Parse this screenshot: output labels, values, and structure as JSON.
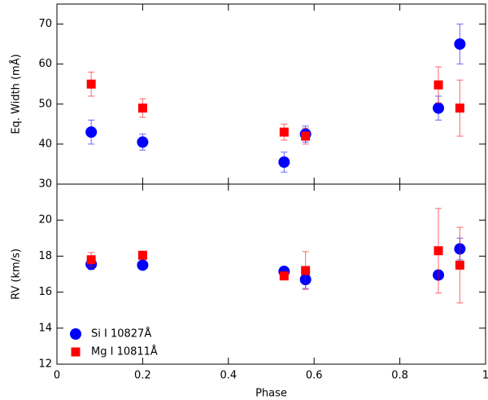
{
  "chart_data": [
    {
      "type": "scatter",
      "y_label": "Eq. Width (mÅ)",
      "xlim": [
        0,
        1
      ],
      "xticks": [
        0,
        0.2,
        0.4,
        0.6,
        0.8,
        1
      ],
      "ylim": [
        30,
        75
      ],
      "yticks": [
        30,
        40,
        50,
        60,
        70
      ],
      "series": [
        {
          "name": "Si I 10827Å",
          "color": "#0000ff",
          "marker": "circle",
          "x": [
            0.08,
            0.2,
            0.53,
            0.58,
            0.89,
            0.94
          ],
          "values": [
            43,
            40.5,
            35.5,
            42.5,
            49,
            65
          ],
          "errors": [
            3,
            2,
            2.5,
            2,
            3,
            5
          ]
        },
        {
          "name": "Mg I 10811Å",
          "color": "#ff0000",
          "marker": "square",
          "x": [
            0.08,
            0.2,
            0.53,
            0.58,
            0.89,
            0.94
          ],
          "values": [
            55,
            49,
            43,
            42,
            54.8,
            49
          ],
          "errors": [
            3,
            2.3,
            2,
            2,
            4.5,
            7
          ]
        }
      ]
    },
    {
      "type": "scatter",
      "x_label": "Phase",
      "y_label": "RV (km/s)",
      "legend": "lower left",
      "xlim": [
        0,
        1
      ],
      "xticks": [
        0,
        0.2,
        0.4,
        0.6,
        0.8,
        1
      ],
      "ylim": [
        12,
        22
      ],
      "yticks": [
        12,
        14,
        16,
        18,
        20
      ],
      "series": [
        {
          "name": "Si I 10827Å",
          "color": "#0000ff",
          "marker": "circle",
          "x": [
            0.08,
            0.2,
            0.53,
            0.58,
            0.89,
            0.94
          ],
          "values": [
            17.55,
            17.5,
            17.15,
            16.7,
            16.95,
            18.4
          ],
          "errors": [
            0.3,
            0.2,
            0.2,
            0.5,
            0.2,
            0.6
          ]
        },
        {
          "name": "Mg I 10811Å",
          "color": "#ff0000",
          "marker": "square",
          "x": [
            0.08,
            0.2,
            0.53,
            0.58,
            0.89,
            0.94
          ],
          "values": [
            17.8,
            18.05,
            16.9,
            17.2,
            18.3,
            17.5
          ],
          "errors": [
            0.4,
            0.2,
            0.2,
            1.05,
            2.35,
            2.1
          ]
        }
      ]
    }
  ]
}
